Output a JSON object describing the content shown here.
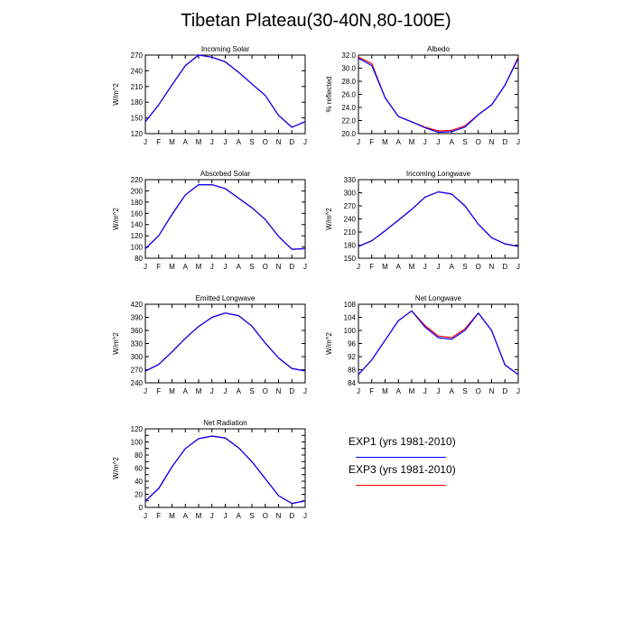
{
  "title": "Tibetan Plateau(30-40N,80-100E)",
  "months": [
    "J",
    "F",
    "M",
    "A",
    "M",
    "J",
    "J",
    "A",
    "S",
    "O",
    "N",
    "D",
    "J"
  ],
  "colors": {
    "exp1": "#0000ff",
    "exp3": "#ff0000"
  },
  "legend": [
    {
      "label": "EXP1 (yrs 1981-2010)",
      "color": "#0000ff"
    },
    {
      "label": "EXP3 (yrs 1981-2010)",
      "color": "#ff0000"
    }
  ],
  "chart_data": [
    {
      "type": "line",
      "title": "Incoming Solar",
      "ylabel": "W/m^2",
      "ylim": [
        120,
        270
      ],
      "yticks": [
        120,
        150,
        180,
        210,
        240,
        270
      ],
      "series": [
        {
          "name": "EXP1 (yrs 1981-2010)",
          "values": [
            143,
            175,
            213,
            250,
            270,
            266,
            257,
            237,
            215,
            193,
            155,
            132,
            143
          ]
        },
        {
          "name": "EXP3 (yrs 1981-2010)",
          "values": [
            143,
            175,
            213,
            250,
            270,
            266,
            257,
            237,
            215,
            193,
            155,
            132,
            143
          ]
        }
      ]
    },
    {
      "type": "line",
      "title": "Albedo",
      "ylabel": "% reflected",
      "ylim": [
        20.0,
        32.0
      ],
      "yticks": [
        "20.0",
        "22.0",
        "24.0",
        "26.0",
        "28.0",
        "30.0",
        "32.0"
      ],
      "series": [
        {
          "name": "EXP1 (yrs 1981-2010)",
          "values": [
            31.5,
            30.4,
            25.5,
            22.6,
            21.8,
            20.9,
            20.2,
            20.3,
            21.0,
            22.9,
            24.4,
            27.4,
            31.5
          ]
        },
        {
          "name": "EXP3 (yrs 1981-2010)",
          "values": [
            31.7,
            30.7,
            25.5,
            22.6,
            21.8,
            21.0,
            20.4,
            20.5,
            21.2,
            22.9,
            24.4,
            27.4,
            31.7
          ]
        }
      ]
    },
    {
      "type": "line",
      "title": "Absorbed Solar",
      "ylabel": "W/m^2",
      "ylim": [
        80,
        220
      ],
      "yticks": [
        80,
        100,
        120,
        140,
        160,
        180,
        200,
        220
      ],
      "series": [
        {
          "name": "EXP1 (yrs 1981-2010)",
          "values": [
            97,
            120,
            158,
            193,
            211,
            211,
            204,
            187,
            170,
            149,
            119,
            96,
            97
          ]
        },
        {
          "name": "EXP3 (yrs 1981-2010)",
          "values": [
            97,
            120,
            158,
            193,
            211,
            211,
            204,
            187,
            170,
            149,
            119,
            96,
            97
          ]
        }
      ]
    },
    {
      "type": "line",
      "title": "Incoming Longwave",
      "ylabel": "W/m^2",
      "ylim": [
        150,
        330
      ],
      "yticks": [
        150,
        180,
        210,
        240,
        270,
        300,
        330
      ],
      "series": [
        {
          "name": "EXP1 (yrs 1981-2010)",
          "values": [
            177,
            190,
            213,
            237,
            262,
            290,
            302,
            297,
            270,
            228,
            197,
            183,
            177
          ]
        },
        {
          "name": "EXP3 (yrs 1981-2010)",
          "values": [
            177,
            190,
            213,
            237,
            262,
            290,
            302,
            297,
            270,
            228,
            197,
            183,
            177
          ]
        }
      ]
    },
    {
      "type": "line",
      "title": "Emitted Longwave",
      "ylabel": "W/m^2",
      "ylim": [
        240,
        420
      ],
      "yticks": [
        240,
        270,
        300,
        330,
        360,
        390,
        420
      ],
      "series": [
        {
          "name": "EXP1 (yrs 1981-2010)",
          "values": [
            267,
            282,
            311,
            342,
            369,
            390,
            400,
            394,
            370,
            331,
            297,
            273,
            267
          ]
        },
        {
          "name": "EXP3 (yrs 1981-2010)",
          "values": [
            267,
            282,
            311,
            342,
            369,
            390,
            400,
            394,
            370,
            331,
            297,
            273,
            267
          ]
        }
      ]
    },
    {
      "type": "line",
      "title": "Net Longwave",
      "ylabel": "W/m^2",
      "ylim": [
        84,
        108
      ],
      "yticks": [
        84,
        88,
        92,
        96,
        100,
        104,
        108
      ],
      "series": [
        {
          "name": "EXP1 (yrs 1981-2010)",
          "values": [
            86.5,
            91,
            97,
            103,
            106,
            101,
            97.8,
            97.3,
            100,
            105.3,
            100,
            89.5,
            86.5
          ]
        },
        {
          "name": "EXP3 (yrs 1981-2010)",
          "values": [
            86.5,
            91,
            97,
            103,
            106,
            101.5,
            98.3,
            97.8,
            100.5,
            105.3,
            100,
            89.5,
            86.5
          ]
        }
      ]
    },
    {
      "type": "line",
      "title": "Net Radiation",
      "ylabel": "W/m^2",
      "ylim": [
        0,
        120
      ],
      "yticks": [
        0,
        10,
        20,
        30,
        40,
        50,
        60,
        70,
        80,
        90,
        100,
        110,
        120
      ],
      "ytick_labels_shown": [
        0,
        20,
        40,
        60,
        80,
        100,
        120
      ],
      "series": [
        {
          "name": "EXP1 (yrs 1981-2010)",
          "values": [
            10,
            29,
            62,
            90,
            105,
            109,
            106,
            91,
            70,
            44,
            18,
            6,
            10
          ]
        },
        {
          "name": "EXP3 (yrs 1981-2010)",
          "values": [
            10,
            29,
            62,
            90,
            105,
            109,
            106,
            91,
            70,
            44,
            18,
            6,
            10
          ]
        }
      ]
    }
  ]
}
